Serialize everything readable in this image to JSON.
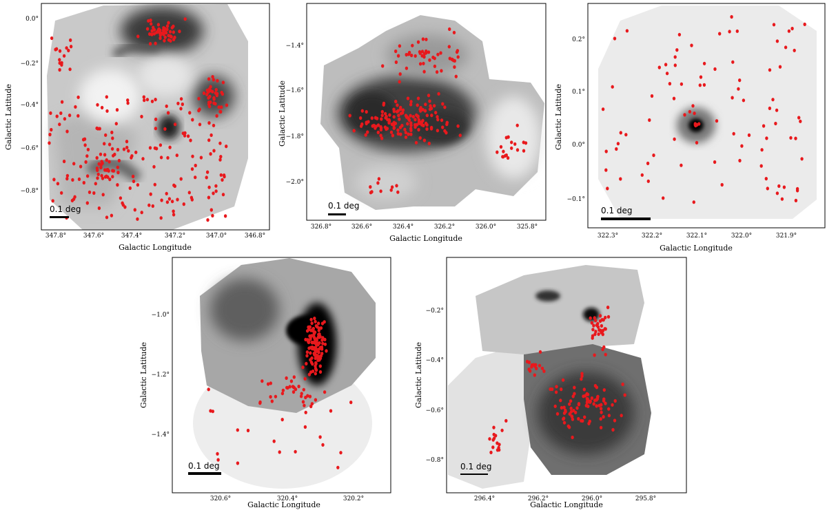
{
  "panels": [
    {
      "id": "p1",
      "xlabel": "Galactic Longitude",
      "ylabel": "Galactic Latitude",
      "scalebar_label": "0.1 deg",
      "xticks": [
        "347.8°",
        "347.6°",
        "347.4°",
        "347.2°",
        "347.0°",
        "346.8°"
      ],
      "yticks": [
        "0.0°",
        "−0.2°",
        "−0.4°",
        "−0.6°",
        "−0.8°"
      ]
    },
    {
      "id": "p2",
      "xlabel": "Galactic Longitude",
      "ylabel": "Galactic Latitude",
      "scalebar_label": "0.1 deg",
      "xticks": [
        "326.8°",
        "326.6°",
        "326.4°",
        "326.2°",
        "326.0°",
        "325.8°"
      ],
      "yticks": [
        "−1.4°",
        "−1.6°",
        "−1.8°",
        "−2.0°"
      ]
    },
    {
      "id": "p3",
      "xlabel": "Galactic Longitude",
      "ylabel": "Galactic Latitude",
      "scalebar_label": "0.1 deg",
      "xticks": [
        "322.3°",
        "322.2°",
        "322.1°",
        "322.0°",
        "321.9°"
      ],
      "yticks": [
        "0.2°",
        "0.1°",
        "0.0°",
        "−0.1°"
      ]
    },
    {
      "id": "p4",
      "xlabel": "Galactic Longitude",
      "ylabel": "Galactic Latitude",
      "scalebar_label": "0.1 deg",
      "xticks": [
        "320.6°",
        "320.4°",
        "320.2°"
      ],
      "yticks": [
        "−1.0°",
        "−1.2°",
        "−1.4°"
      ]
    },
    {
      "id": "p5",
      "xlabel": "Galactic Longitude",
      "ylabel": "Galactic Latitude",
      "scalebar_label": "0.1 deg",
      "xticks": [
        "296.4°",
        "296.2°",
        "296.0°",
        "295.8°"
      ],
      "yticks": [
        "−0.2°",
        "−0.4°",
        "−0.6°",
        "−0.8°"
      ]
    }
  ],
  "colors": {
    "source_marker": "#e8191d",
    "frame": "#000000",
    "background": "#ffffff"
  }
}
